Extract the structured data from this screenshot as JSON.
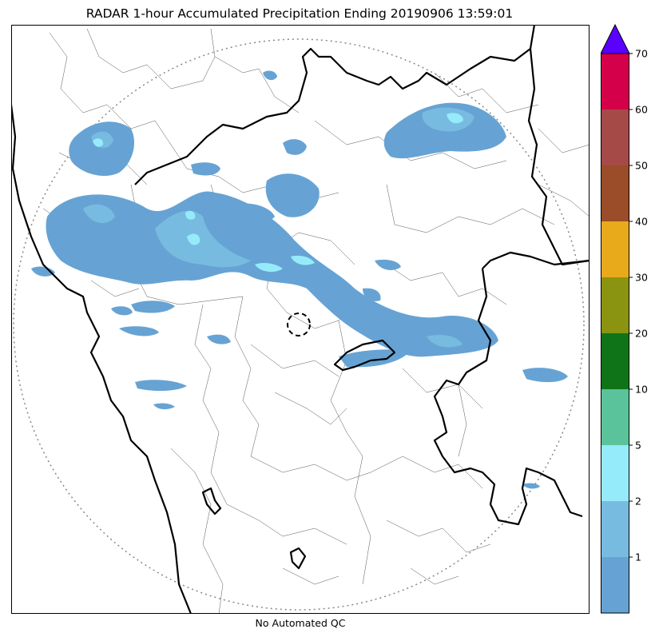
{
  "title": "RADAR 1-hour Accumulated Precipitation Ending 20190906 13:59:01",
  "footer": "No Automated QC",
  "colorbar": {
    "levels": [
      {
        "label": "",
        "color": "#66a3d4"
      },
      {
        "label": "1",
        "color": "#78bbe1"
      },
      {
        "label": "2",
        "color": "#96ebfa"
      },
      {
        "label": "5",
        "color": "#5ac39b"
      },
      {
        "label": "10",
        "color": "#0f7417"
      },
      {
        "label": "20",
        "color": "#8a9411"
      },
      {
        "label": "30",
        "color": "#e8a91b"
      },
      {
        "label": "40",
        "color": "#9a4d28"
      },
      {
        "label": "50",
        "color": "#a64a47"
      },
      {
        "label": "60",
        "color": "#d5004a"
      },
      {
        "label": "70",
        "color": "#5a00ff"
      }
    ]
  },
  "colors": {
    "light_rain": "#66a3d4",
    "moderate_rain": "#78bbe1",
    "heavy_rain": "#96ebfa",
    "range_ring": "#888888",
    "border": "#000000"
  }
}
